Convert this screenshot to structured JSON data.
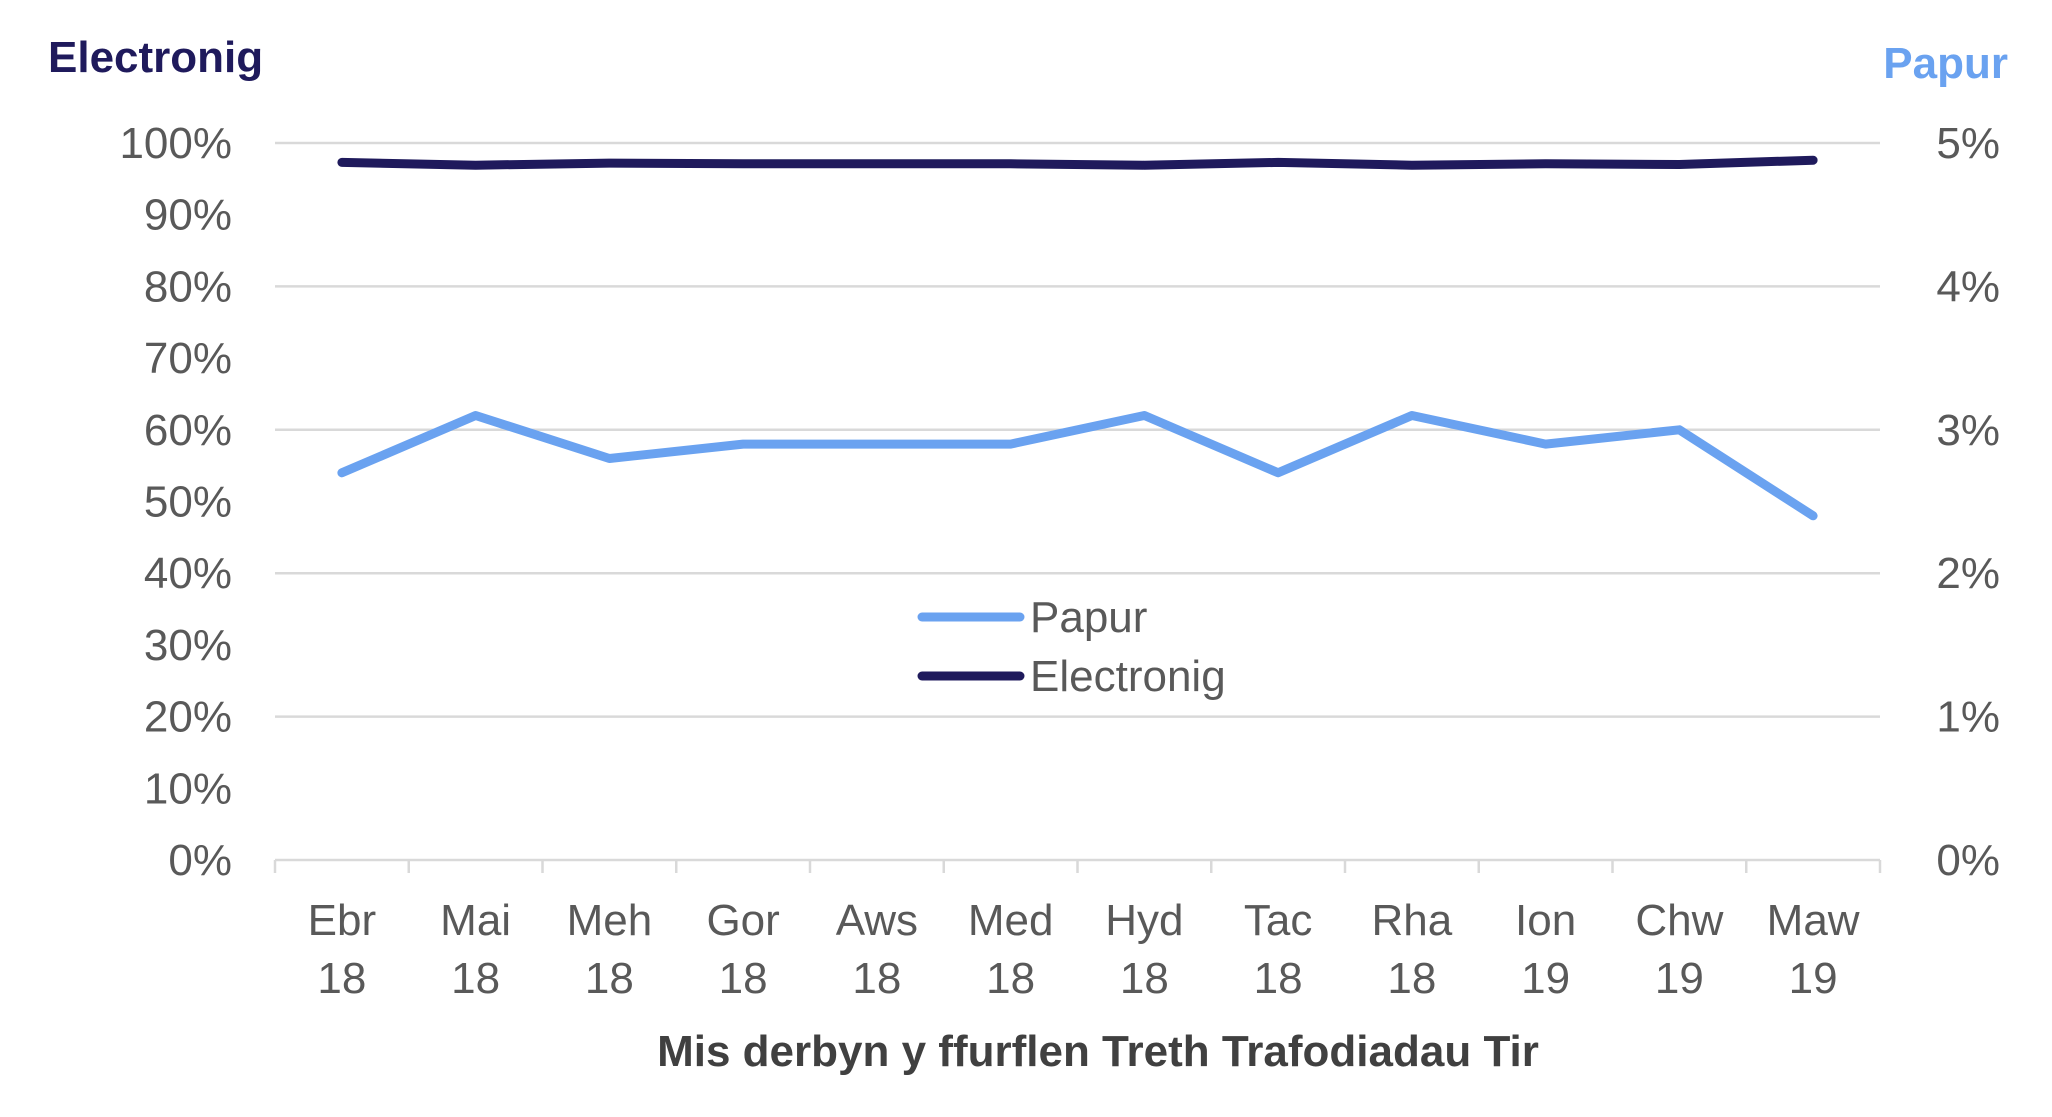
{
  "chart_data": {
    "type": "line",
    "categories": [
      [
        "Ebr",
        "18"
      ],
      [
        "Mai",
        "18"
      ],
      [
        "Meh",
        "18"
      ],
      [
        "Gor",
        "18"
      ],
      [
        "Aws",
        "18"
      ],
      [
        "Med",
        "18"
      ],
      [
        "Hyd",
        "18"
      ],
      [
        "Tac",
        "18"
      ],
      [
        "Rha",
        "18"
      ],
      [
        "Ion",
        "19"
      ],
      [
        "Chw",
        "19"
      ],
      [
        "Maw",
        "19"
      ]
    ],
    "xlabel": "Mis derbyn y ffurflen Treth Trafodiadau Tir",
    "y_left": {
      "title": "Electronig",
      "ylim": [
        0,
        100
      ],
      "ticks": [
        "0%",
        "10%",
        "20%",
        "30%",
        "40%",
        "50%",
        "60%",
        "70%",
        "80%",
        "90%",
        "100%"
      ]
    },
    "y_right": {
      "title": "Papur",
      "ylim": [
        0,
        5
      ],
      "ticks": [
        "0%",
        "1%",
        "2%",
        "3%",
        "4%",
        "5%"
      ]
    },
    "series": [
      {
        "name": "Papur",
        "axis": "right",
        "color": "#6aa2f0",
        "values": [
          2.7,
          3.1,
          2.8,
          2.9,
          2.9,
          2.9,
          3.1,
          2.7,
          3.1,
          2.9,
          3.0,
          2.4
        ]
      },
      {
        "name": "Electronig",
        "axis": "left",
        "color": "#1f1a5c",
        "values": [
          97.3,
          96.9,
          97.2,
          97.1,
          97.1,
          97.1,
          96.9,
          97.3,
          96.9,
          97.1,
          97.0,
          97.6
        ]
      }
    ],
    "legend": {
      "placement": "center",
      "entries": [
        "Papur",
        "Electronig"
      ]
    },
    "grid": true
  }
}
